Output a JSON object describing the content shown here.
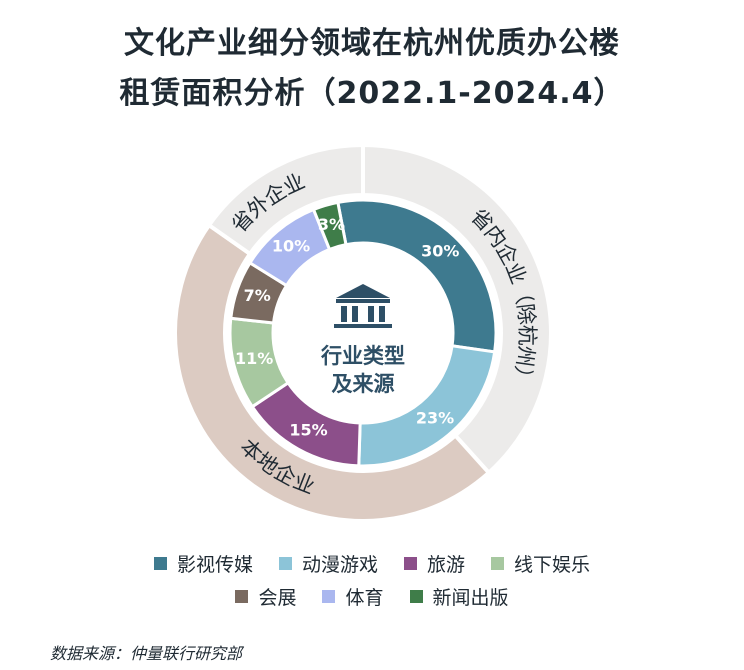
{
  "title": {
    "line1": "文化产业细分领域在杭州优质办公楼",
    "line2": "租赁面积分析（2022.1-2024.4）"
  },
  "center_label": {
    "line1": "行业类型",
    "line2": "及来源"
  },
  "source_note": "数据来源：仲量联行研究部",
  "center_icon": "bank-building-icon",
  "chart_data": {
    "type": "donut",
    "inner_ring": {
      "categories": [
        "影视传媒",
        "动漫游戏",
        "旅游",
        "线下娱乐",
        "会展",
        "体育",
        "新闻出版"
      ],
      "values": [
        30,
        23,
        15,
        11,
        7,
        10,
        3
      ],
      "labels": [
        "30%",
        "23%",
        "15%",
        "11%",
        "7%",
        "10%",
        "3%"
      ],
      "colors": [
        "#3e7a8f",
        "#8cc4d8",
        "#8c4f8a",
        "#a7c8a0",
        "#7a6a60",
        "#aab7ef",
        "#3f7d49"
      ]
    },
    "outer_ring": {
      "categories": [
        "省内企业（除杭州）",
        "本地企业",
        "省外企业"
      ],
      "colors": [
        "#ecebea",
        "#dccbc2",
        "#ecebea"
      ]
    },
    "legend": {
      "row1": [
        "影视传媒",
        "动漫游戏",
        "旅游",
        "线下娱乐"
      ],
      "row2": [
        "会展",
        "体育",
        "新闻出版"
      ]
    }
  }
}
